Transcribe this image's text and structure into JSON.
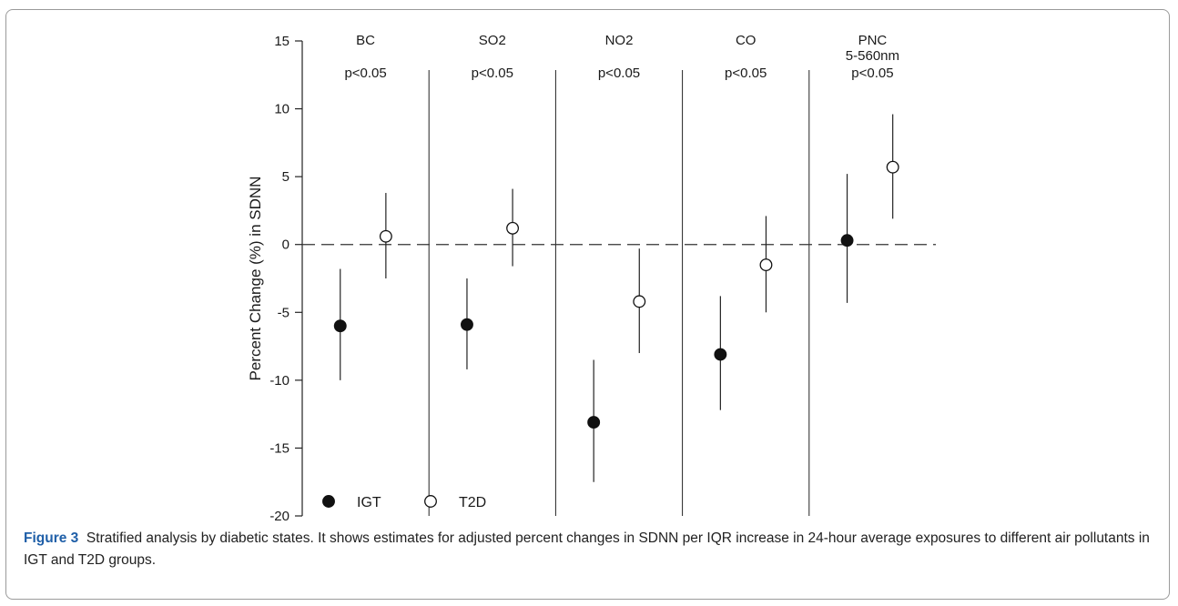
{
  "chart_data": {
    "type": "scatter",
    "ylabel": "Percent Change (%) in SDNN",
    "ylim": [
      -20,
      15
    ],
    "yticks": [
      15,
      10,
      5,
      0,
      -5,
      -10,
      -15,
      -20
    ],
    "ytick_labels": [
      "15",
      "10",
      "5",
      "0",
      "-5",
      "-10",
      "-15",
      "-20"
    ],
    "reference_line": 0,
    "panels": [
      {
        "title": [
          "BC"
        ],
        "pvalue": "p<0.05"
      },
      {
        "title": [
          "SO2"
        ],
        "pvalue": "p<0.05"
      },
      {
        "title": [
          "NO2"
        ],
        "pvalue": "p<0.05"
      },
      {
        "title": [
          "CO"
        ],
        "pvalue": "p<0.05"
      },
      {
        "title": [
          "PNC",
          "5-560nm"
        ],
        "pvalue": "p<0.05"
      }
    ],
    "series": [
      {
        "name": "IGT",
        "marker": "filled-circle",
        "values": [
          -6.0,
          -5.9,
          -13.1,
          -8.1,
          0.3
        ],
        "lower": [
          -10.0,
          -9.2,
          -17.5,
          -12.2,
          -4.3
        ],
        "upper": [
          -1.8,
          -2.5,
          -8.5,
          -3.8,
          5.2
        ]
      },
      {
        "name": "T2D",
        "marker": "open-circle",
        "values": [
          0.6,
          1.2,
          -4.2,
          -1.5,
          5.7
        ],
        "lower": [
          -2.5,
          -1.6,
          -8.0,
          -5.0,
          1.9
        ],
        "upper": [
          3.8,
          4.1,
          -0.3,
          2.1,
          9.6
        ]
      }
    ],
    "grid": false,
    "legend_position": "bottom-left"
  },
  "caption": {
    "label": "Figure 3",
    "text": "Stratified analysis by diabetic states. It shows estimates for adjusted percent changes in SDNN per IQR increase in 24-hour average exposures to different air pollutants in IGT and T2D groups."
  }
}
